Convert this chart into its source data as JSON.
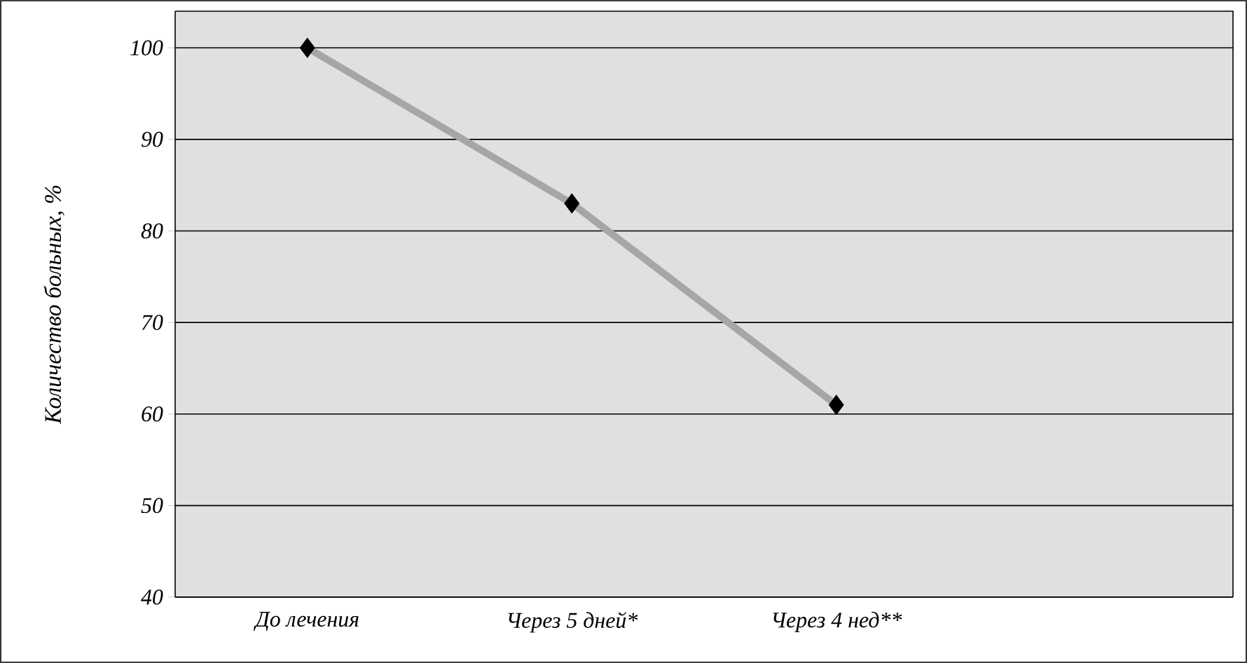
{
  "chart_data": {
    "type": "line",
    "ylabel": "Количество больных, %",
    "categories": [
      "До лечения",
      "Через 5 дней*",
      "Через 4 нед**",
      null
    ],
    "series": [
      {
        "color": "#a6a6a6",
        "values": [
          100,
          83,
          61,
          null
        ]
      }
    ],
    "ylim": [
      40,
      104
    ],
    "yticks": [
      40,
      50,
      60,
      70,
      80,
      90,
      100
    ],
    "grid": "y",
    "marker": "diamond",
    "line_style": "solid"
  }
}
